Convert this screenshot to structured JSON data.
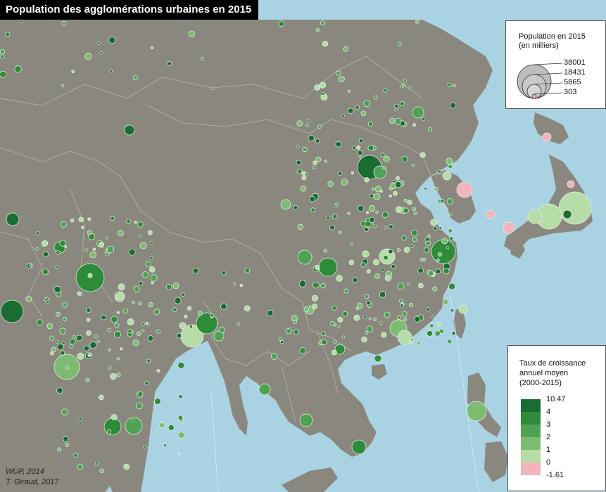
{
  "title": "Population des agglomérations urbaines en 2015",
  "legend_population": {
    "title_line1": "Population en 2015",
    "title_line2": "(en milliers)",
    "values": [
      "38001",
      "18431",
      "5865",
      "303"
    ]
  },
  "legend_growth": {
    "title_line1": "Taux de croissance",
    "title_line2": "annuel moyen",
    "title_line3": "(2000-2015)",
    "breaks": [
      "10.47",
      "4",
      "3",
      "2",
      "1",
      "0",
      "-1.61"
    ],
    "colors": [
      "#1b6c32",
      "#2e8b3a",
      "#4fa253",
      "#7dbb72",
      "#b6dca8",
      "#f2b3bb"
    ]
  },
  "credits": {
    "source": "WUP, 2014",
    "author": "T. Giraud, 2017"
  },
  "colors": {
    "water": "#a9d3e2",
    "land": "#8a877f",
    "border": "#b8b5ad"
  }
}
